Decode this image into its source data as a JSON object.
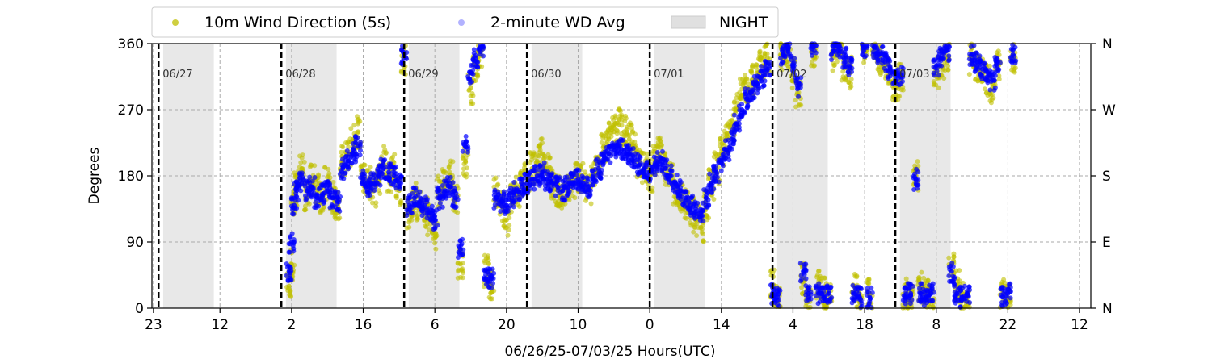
{
  "chart_data": {
    "type": "scatter",
    "xlabel": "06/26/25-07/03/25  Hours(UTC)",
    "ylabel": "Degrees",
    "ylim": [
      0,
      360
    ],
    "xlim": [
      -0.3,
      183.2
    ],
    "grid": true,
    "legend_position": "top",
    "left_y_ticks": [
      {
        "value": 0,
        "label": "0"
      },
      {
        "value": 90,
        "label": "90"
      },
      {
        "value": 180,
        "label": "180"
      },
      {
        "value": 270,
        "label": "270"
      },
      {
        "value": 360,
        "label": "360"
      }
    ],
    "right_y_ticks": [
      {
        "value": 0,
        "label": "N"
      },
      {
        "value": 90,
        "label": "E"
      },
      {
        "value": 180,
        "label": "S"
      },
      {
        "value": 270,
        "label": "W"
      },
      {
        "value": 360,
        "label": "N"
      }
    ],
    "x_ticks": [
      {
        "value": 0,
        "label": "23"
      },
      {
        "value": 13,
        "label": "12"
      },
      {
        "value": 27,
        "label": "2"
      },
      {
        "value": 41,
        "label": "16"
      },
      {
        "value": 55,
        "label": "6"
      },
      {
        "value": 69,
        "label": "20"
      },
      {
        "value": 83,
        "label": "10"
      },
      {
        "value": 97,
        "label": "0"
      },
      {
        "value": 111,
        "label": "14"
      },
      {
        "value": 125,
        "label": "4"
      },
      {
        "value": 139,
        "label": "18"
      },
      {
        "value": 153,
        "label": "8"
      },
      {
        "value": 167,
        "label": "22"
      },
      {
        "value": 181,
        "label": "12"
      }
    ],
    "day_boundaries": [
      {
        "x": 1,
        "label": "06/27"
      },
      {
        "x": 25,
        "label": "06/28"
      },
      {
        "x": 49,
        "label": "06/29"
      },
      {
        "x": 73,
        "label": "06/30"
      },
      {
        "x": 97,
        "label": "07/01"
      },
      {
        "x": 121,
        "label": "07/02"
      },
      {
        "x": 145,
        "label": "07/03"
      }
    ],
    "night_periods": [
      [
        1.9,
        11.8
      ],
      [
        25.9,
        35.8
      ],
      [
        49.9,
        59.8
      ],
      [
        73.9,
        83.8
      ],
      [
        97.9,
        107.8
      ],
      [
        121.9,
        131.8
      ],
      [
        145.9,
        155.8
      ]
    ],
    "series": [
      {
        "name": "10m Wind Direction (5s)",
        "color": "#bfbf00",
        "points": [
          [
            26.5,
            30
          ],
          [
            27,
            60
          ],
          [
            27.5,
            140
          ],
          [
            28,
            165
          ],
          [
            29,
            190
          ],
          [
            30,
            150
          ],
          [
            31,
            175
          ],
          [
            32,
            160
          ],
          [
            33,
            150
          ],
          [
            34,
            170
          ],
          [
            35,
            150
          ],
          [
            36,
            140
          ],
          [
            37,
            200
          ],
          [
            38,
            210
          ],
          [
            39,
            230
          ],
          [
            40,
            240
          ],
          [
            41,
            180
          ],
          [
            42,
            170
          ],
          [
            43,
            160
          ],
          [
            44,
            175
          ],
          [
            45,
            200
          ],
          [
            46,
            180
          ],
          [
            47,
            190
          ],
          [
            48,
            160
          ],
          [
            49,
            340
          ],
          [
            50,
            130
          ],
          [
            51,
            150
          ],
          [
            52,
            140
          ],
          [
            53,
            130
          ],
          [
            54,
            120
          ],
          [
            55,
            100
          ],
          [
            56,
            160
          ],
          [
            57,
            170
          ],
          [
            58,
            180
          ],
          [
            59,
            150
          ],
          [
            60,
            60
          ],
          [
            61,
            200
          ],
          [
            62,
            300
          ],
          [
            63,
            330
          ],
          [
            64,
            350
          ],
          [
            65,
            50
          ],
          [
            66,
            30
          ],
          [
            67,
            160
          ],
          [
            68,
            140
          ],
          [
            69,
            120
          ],
          [
            70,
            150
          ],
          [
            71,
            160
          ],
          [
            72,
            170
          ],
          [
            73,
            180
          ],
          [
            74,
            190
          ],
          [
            75,
            200
          ],
          [
            76,
            210
          ],
          [
            77,
            190
          ],
          [
            78,
            170
          ],
          [
            79,
            160
          ],
          [
            80,
            150
          ],
          [
            81,
            160
          ],
          [
            82,
            170
          ],
          [
            83,
            180
          ],
          [
            84,
            175
          ],
          [
            85,
            160
          ],
          [
            86,
            180
          ],
          [
            87,
            200
          ],
          [
            88,
            220
          ],
          [
            89,
            230
          ],
          [
            90,
            240
          ],
          [
            91,
            250
          ],
          [
            92,
            240
          ],
          [
            93,
            230
          ],
          [
            94,
            220
          ],
          [
            95,
            200
          ],
          [
            96,
            190
          ],
          [
            97,
            180
          ],
          [
            98,
            200
          ],
          [
            99,
            210
          ],
          [
            100,
            190
          ],
          [
            101,
            180
          ],
          [
            102,
            160
          ],
          [
            103,
            150
          ],
          [
            104,
            140
          ],
          [
            105,
            130
          ],
          [
            106,
            120
          ],
          [
            107,
            110
          ],
          [
            108,
            140
          ],
          [
            109,
            170
          ],
          [
            110,
            190
          ],
          [
            111,
            210
          ],
          [
            112,
            230
          ],
          [
            113,
            250
          ],
          [
            114,
            270
          ],
          [
            115,
            290
          ],
          [
            116,
            300
          ],
          [
            117,
            310
          ],
          [
            118,
            320
          ],
          [
            119,
            330
          ],
          [
            120,
            340
          ],
          [
            121,
            30
          ],
          [
            122,
            10
          ],
          [
            123,
            340
          ],
          [
            124,
            350
          ],
          [
            125,
            320
          ],
          [
            126,
            290
          ],
          [
            127,
            40
          ],
          [
            128,
            10
          ],
          [
            129,
            350
          ],
          [
            130,
            30
          ],
          [
            131,
            20
          ],
          [
            132,
            10
          ],
          [
            133,
            345
          ],
          [
            134,
            355
          ],
          [
            135,
            330
          ],
          [
            136,
            320
          ],
          [
            137,
            30
          ],
          [
            138,
            10
          ],
          [
            139,
            350
          ],
          [
            140,
            20
          ],
          [
            141,
            355
          ],
          [
            142,
            340
          ],
          [
            143,
            330
          ],
          [
            144,
            320
          ],
          [
            145,
            300
          ],
          [
            146,
            310
          ],
          [
            147,
            20
          ],
          [
            148,
            10
          ],
          [
            149,
            180
          ],
          [
            150,
            30
          ],
          [
            151,
            20
          ],
          [
            152,
            10
          ],
          [
            153,
            320
          ],
          [
            154,
            330
          ],
          [
            155,
            340
          ],
          [
            156,
            60
          ],
          [
            157,
            30
          ],
          [
            158,
            20
          ],
          [
            159,
            10
          ],
          [
            160,
            340
          ],
          [
            161,
            330
          ],
          [
            162,
            320
          ],
          [
            163,
            310
          ],
          [
            164,
            300
          ],
          [
            165,
            330
          ],
          [
            166,
            20
          ],
          [
            167,
            10
          ],
          [
            168,
            340
          ]
        ]
      },
      {
        "name": "2-minute WD Avg",
        "color": "#0000ff",
        "points": [
          [
            26.5,
            50
          ],
          [
            27,
            90
          ],
          [
            27.5,
            140
          ],
          [
            28,
            160
          ],
          [
            29,
            170
          ],
          [
            30,
            160
          ],
          [
            31,
            165
          ],
          [
            32,
            150
          ],
          [
            33,
            155
          ],
          [
            34,
            160
          ],
          [
            35,
            150
          ],
          [
            36,
            145
          ],
          [
            37,
            190
          ],
          [
            38,
            200
          ],
          [
            39,
            210
          ],
          [
            40,
            220
          ],
          [
            41,
            175
          ],
          [
            42,
            165
          ],
          [
            43,
            170
          ],
          [
            44,
            180
          ],
          [
            45,
            190
          ],
          [
            46,
            185
          ],
          [
            47,
            180
          ],
          [
            48,
            170
          ],
          [
            49,
            345
          ],
          [
            50,
            140
          ],
          [
            51,
            150
          ],
          [
            52,
            145
          ],
          [
            53,
            140
          ],
          [
            54,
            130
          ],
          [
            55,
            120
          ],
          [
            56,
            150
          ],
          [
            57,
            160
          ],
          [
            58,
            165
          ],
          [
            59,
            150
          ],
          [
            60,
            80
          ],
          [
            61,
            220
          ],
          [
            62,
            320
          ],
          [
            63,
            340
          ],
          [
            64,
            355
          ],
          [
            65,
            40
          ],
          [
            66,
            40
          ],
          [
            67,
            150
          ],
          [
            68,
            145
          ],
          [
            69,
            140
          ],
          [
            70,
            150
          ],
          [
            71,
            160
          ],
          [
            72,
            165
          ],
          [
            73,
            170
          ],
          [
            74,
            175
          ],
          [
            75,
            180
          ],
          [
            76,
            185
          ],
          [
            77,
            175
          ],
          [
            78,
            170
          ],
          [
            79,
            165
          ],
          [
            80,
            160
          ],
          [
            81,
            165
          ],
          [
            82,
            170
          ],
          [
            83,
            175
          ],
          [
            84,
            170
          ],
          [
            85,
            165
          ],
          [
            86,
            175
          ],
          [
            87,
            190
          ],
          [
            88,
            200
          ],
          [
            89,
            210
          ],
          [
            90,
            215
          ],
          [
            91,
            220
          ],
          [
            92,
            215
          ],
          [
            93,
            210
          ],
          [
            94,
            205
          ],
          [
            95,
            195
          ],
          [
            96,
            190
          ],
          [
            97,
            185
          ],
          [
            98,
            195
          ],
          [
            99,
            200
          ],
          [
            100,
            190
          ],
          [
            101,
            180
          ],
          [
            102,
            170
          ],
          [
            103,
            160
          ],
          [
            104,
            150
          ],
          [
            105,
            140
          ],
          [
            106,
            135
          ],
          [
            107,
            130
          ],
          [
            108,
            150
          ],
          [
            109,
            170
          ],
          [
            110,
            185
          ],
          [
            111,
            200
          ],
          [
            112,
            215
          ],
          [
            113,
            230
          ],
          [
            114,
            250
          ],
          [
            115,
            270
          ],
          [
            116,
            285
          ],
          [
            117,
            295
          ],
          [
            118,
            305
          ],
          [
            119,
            315
          ],
          [
            120,
            325
          ],
          [
            121,
            20
          ],
          [
            122,
            15
          ],
          [
            123,
            345
          ],
          [
            124,
            355
          ],
          [
            125,
            330
          ],
          [
            126,
            300
          ],
          [
            127,
            50
          ],
          [
            128,
            20
          ],
          [
            129,
            355
          ],
          [
            130,
            20
          ],
          [
            131,
            15
          ],
          [
            132,
            20
          ],
          [
            133,
            350
          ],
          [
            134,
            355
          ],
          [
            135,
            340
          ],
          [
            136,
            330
          ],
          [
            137,
            20
          ],
          [
            138,
            15
          ],
          [
            139,
            355
          ],
          [
            140,
            15
          ],
          [
            141,
            355
          ],
          [
            142,
            345
          ],
          [
            143,
            335
          ],
          [
            144,
            325
          ],
          [
            145,
            310
          ],
          [
            146,
            315
          ],
          [
            147,
            15
          ],
          [
            148,
            20
          ],
          [
            149,
            175
          ],
          [
            150,
            20
          ],
          [
            151,
            15
          ],
          [
            152,
            20
          ],
          [
            153,
            330
          ],
          [
            154,
            340
          ],
          [
            155,
            350
          ],
          [
            156,
            50
          ],
          [
            157,
            20
          ],
          [
            158,
            15
          ],
          [
            159,
            20
          ],
          [
            160,
            345
          ],
          [
            161,
            335
          ],
          [
            162,
            325
          ],
          [
            163,
            315
          ],
          [
            164,
            310
          ],
          [
            165,
            335
          ],
          [
            166,
            15
          ],
          [
            167,
            20
          ],
          [
            168,
            345
          ]
        ]
      }
    ],
    "legend": {
      "night_label": "NIGHT",
      "night_color": "#e0e0e0"
    }
  }
}
